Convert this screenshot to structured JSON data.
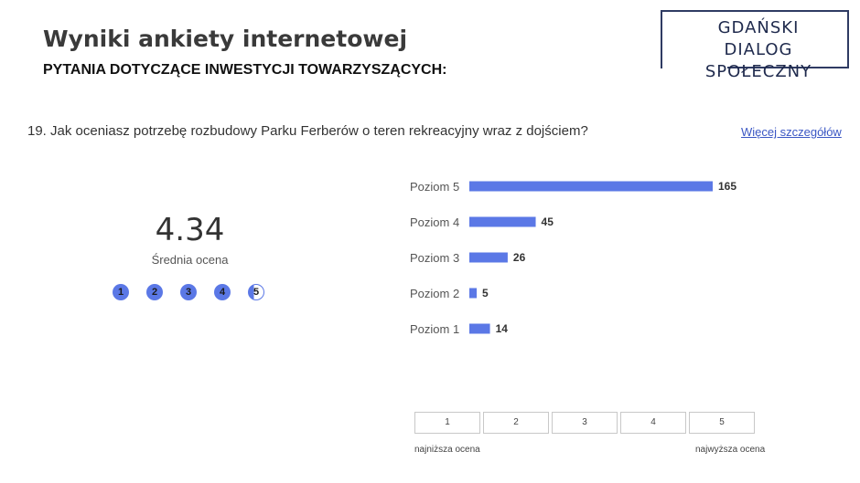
{
  "header": {
    "title": "Wyniki ankiety internetowej",
    "section": "PYTANIA DOTYCZĄCE INWESTYCJI TOWARZYSZĄCYCH:"
  },
  "logo": {
    "line1": "GDAŃSKI DIALOG",
    "line2": "SPOŁECZNY"
  },
  "question": {
    "text": "19. Jak oceniasz potrzebę rozbudowy Parku Ferberów o teren rekreacyjny wraz z dojściem?",
    "link": "Więcej szczegółów"
  },
  "summary": {
    "average": "4.34",
    "label": "Średnia ocena",
    "dots": [
      "1",
      "2",
      "3",
      "4",
      "5"
    ],
    "fill_fraction": 0.34
  },
  "chart_data": {
    "type": "bar",
    "orientation": "horizontal",
    "categories": [
      "Poziom 5",
      "Poziom 4",
      "Poziom 3",
      "Poziom 2",
      "Poziom 1"
    ],
    "values": [
      165,
      45,
      26,
      5,
      14
    ],
    "bar_color": "#5b78e6"
  },
  "scale": {
    "boxes": [
      "1",
      "2",
      "3",
      "4",
      "5"
    ],
    "low_label": "najniższa ocena",
    "high_label": "najwyższa ocena"
  }
}
